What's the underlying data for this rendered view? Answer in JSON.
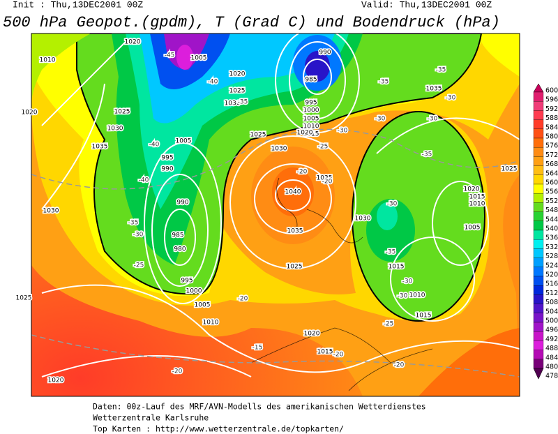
{
  "header": {
    "init": "Init : Thu,13DEC2001 00Z",
    "valid": "Valid: Thu,13DEC2001 00Z",
    "title": "500 hPa Geopot.(gpdm), T (Grad C) und Bodendruck (hPa)"
  },
  "colorbar": {
    "labels": [
      "600",
      "596",
      "592",
      "588",
      "584",
      "580",
      "576",
      "572",
      "568",
      "564",
      "560",
      "556",
      "552",
      "548",
      "544",
      "540",
      "536",
      "532",
      "528",
      "524",
      "520",
      "516",
      "512",
      "508",
      "504",
      "500",
      "496",
      "492",
      "488",
      "484",
      "480",
      "478"
    ],
    "colors": [
      "#c8005a",
      "#e01e6e",
      "#f03c78",
      "#ff3c50",
      "#ff3c28",
      "#ff5014",
      "#ff6e0a",
      "#ff8c14",
      "#ffa014",
      "#ffbe14",
      "#ffd700",
      "#ffff00",
      "#b4f000",
      "#64dc1e",
      "#28d232",
      "#00c846",
      "#00e6a0",
      "#00f0f0",
      "#00c8ff",
      "#00a0ff",
      "#0078ff",
      "#0050f0",
      "#0028dc",
      "#2814c8",
      "#5014c8",
      "#7814c8",
      "#a014c8",
      "#c814c8",
      "#dc1edc",
      "#b40ab4",
      "#780078",
      "#500050"
    ]
  },
  "map": {
    "isobar_labels": [
      "1020",
      "1010",
      "1020",
      "1025",
      "1030",
      "1035",
      "1005",
      "1020",
      "1025",
      "1030",
      "990",
      "985",
      "995",
      "1000",
      "1005",
      "1010",
      "1015",
      "1020",
      "1025",
      "1030",
      "1035",
      "1040",
      "1035",
      "1025",
      "1005",
      "995",
      "990",
      "990",
      "985",
      "980",
      "995",
      "1000",
      "1005",
      "1010",
      "1020",
      "1015",
      "1030",
      "1025",
      "1020",
      "1035",
      "1030",
      "1020",
      "1015",
      "1010",
      "1005",
      "1015",
      "1010",
      "1015",
      "1025"
    ],
    "temperature_labels": [
      "-45",
      "-40",
      "-35",
      "-40",
      "-40",
      "-35",
      "-30",
      "-25",
      "-20",
      "-15",
      "-20",
      "-20",
      "-20",
      "-20",
      "-25",
      "-30",
      "-30",
      "-35",
      "-35",
      "-30",
      "-35",
      "-30",
      "-35",
      "-30",
      "-30",
      "-25",
      "-20",
      "-30"
    ]
  },
  "footer": {
    "lines": [
      "Daten: 00z-Lauf des MRF/AVN-Modells des amerikanischen Wetterdienstes",
      "Wetterzentrale Karlsruhe",
      "Top Karten :  http://www.wetterzentrale.de/topkarten/"
    ]
  }
}
